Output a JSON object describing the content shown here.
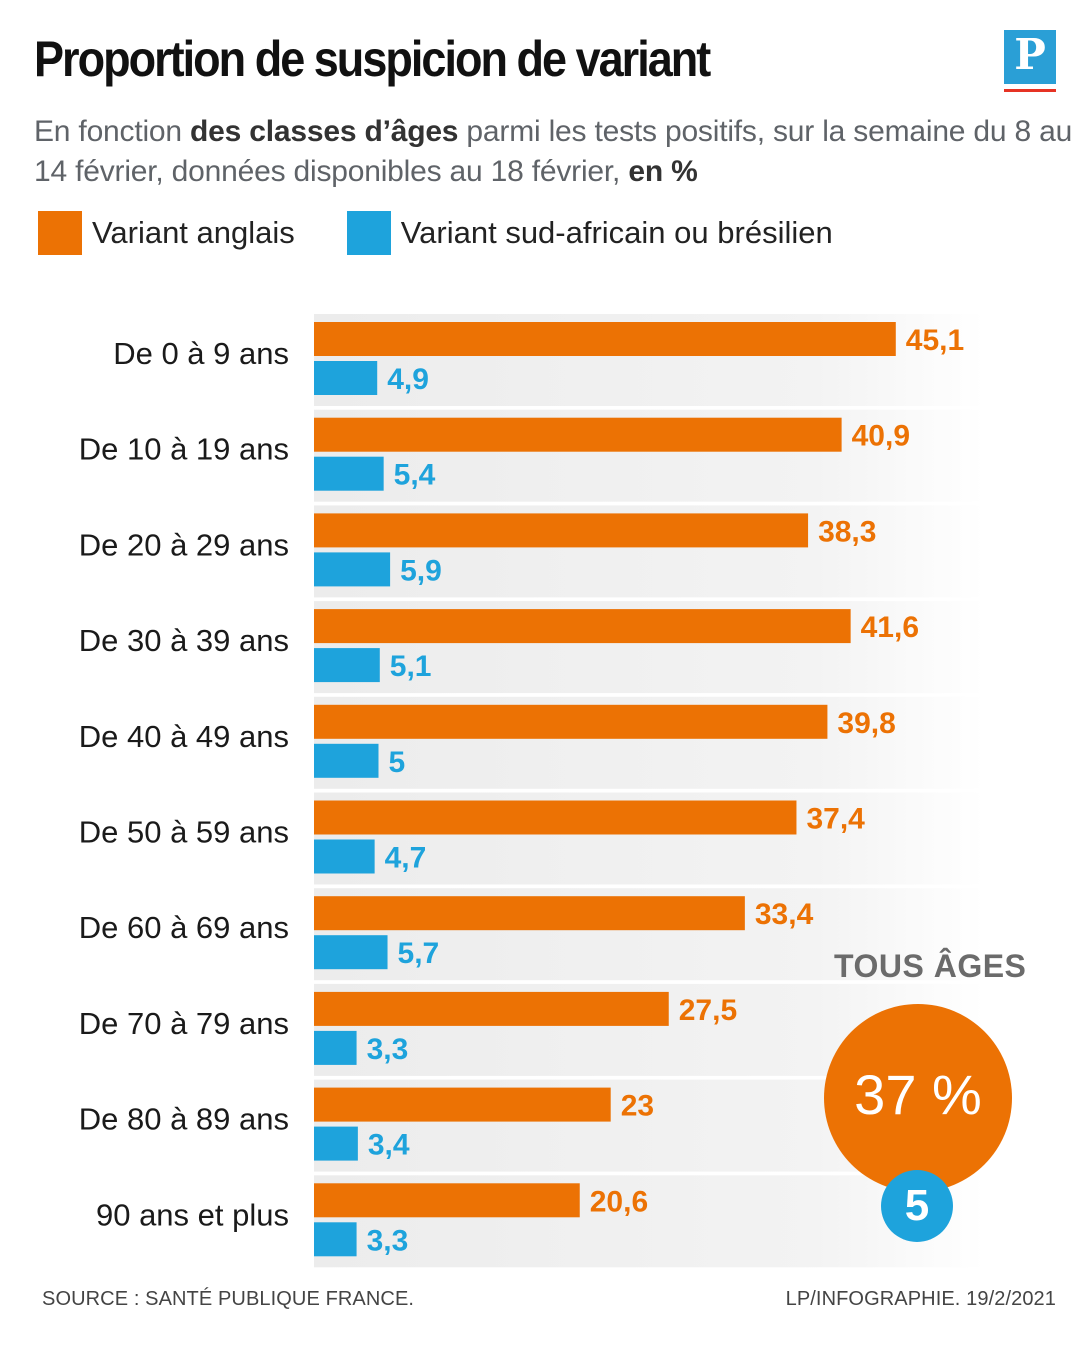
{
  "header": {
    "title": "Proportion de suspicion de variant",
    "logo_letter": "P",
    "subtitle_parts": [
      {
        "text": "En fonction ",
        "bold": false
      },
      {
        "text": "des classes d’âges",
        "bold": true
      },
      {
        "text": " parmi les tests positifs, sur la semaine du 8 au 14 février, données disponibles au 18 février, ",
        "bold": false
      },
      {
        "text": "en %",
        "bold": true
      }
    ]
  },
  "legend": {
    "items": [
      {
        "label": "Variant anglais",
        "color": "#ec7204"
      },
      {
        "label": "Variant sud-africain ou brésilien",
        "color": "#1ea3dc"
      }
    ]
  },
  "summary": {
    "label": "TOUS ÂGES",
    "big_value": "37 %",
    "small_value": "5"
  },
  "footer": {
    "source": "SOURCE : SANTÉ PUBLIQUE FRANCE.",
    "credit": "LP/INFOGRAPHIE. 19/2/2021"
  },
  "chart_data": {
    "type": "bar",
    "orientation": "horizontal",
    "title": "Proportion de suspicion de variant",
    "xlim": [
      0,
      50
    ],
    "categories": [
      "De 0 à 9 ans",
      "De 10 à 19 ans",
      "De 20 à 29 ans",
      "De 30 à 39 ans",
      "De 40 à 49 ans",
      "De 50 à 59 ans",
      "De 60 à 69 ans",
      "De 70 à 79 ans",
      "De 80 à 89 ans",
      "90 ans et plus"
    ],
    "series": [
      {
        "name": "Variant anglais",
        "color": "#ec7204",
        "values": [
          45.1,
          40.9,
          38.3,
          41.6,
          39.8,
          37.4,
          33.4,
          27.5,
          23,
          20.6
        ],
        "labels": [
          "45,1",
          "40,9",
          "38,3",
          "41,6",
          "39,8",
          "37,4",
          "33,4",
          "27,5",
          "23",
          "20,6"
        ]
      },
      {
        "name": "Variant sud-africain ou brésilien",
        "color": "#1ea3dc",
        "values": [
          4.9,
          5.4,
          5.9,
          5.1,
          5,
          4.7,
          5.7,
          3.3,
          3.4,
          3.3
        ],
        "labels": [
          "4,9",
          "5,4",
          "5,9",
          "5,1",
          "5",
          "4,7",
          "5,7",
          "3,3",
          "3,4",
          "3,3"
        ]
      }
    ]
  }
}
